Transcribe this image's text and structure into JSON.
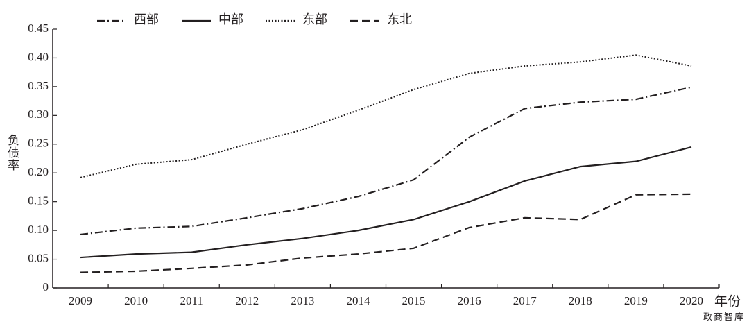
{
  "chart_data": {
    "type": "line",
    "y_label": "负债率",
    "x_label": "年份",
    "watermark": "政商智库",
    "categories": [
      "2009",
      "2010",
      "2011",
      "2012",
      "2013",
      "2014",
      "2015",
      "2016",
      "2017",
      "2018",
      "2019",
      "2020"
    ],
    "series": [
      {
        "name": "西部",
        "color": "#231f20",
        "dash": "dashdot",
        "values": [
          0.093,
          0.104,
          0.107,
          0.122,
          0.138,
          0.159,
          0.188,
          0.262,
          0.312,
          0.323,
          0.328,
          0.349
        ]
      },
      {
        "name": "中部",
        "color": "#231f20",
        "dash": "solid",
        "values": [
          0.053,
          0.059,
          0.062,
          0.075,
          0.086,
          0.1,
          0.119,
          0.15,
          0.186,
          0.211,
          0.22,
          0.245
        ]
      },
      {
        "name": "东部",
        "color": "#231f20",
        "dash": "dotted",
        "values": [
          0.192,
          0.215,
          0.223,
          0.25,
          0.275,
          0.309,
          0.345,
          0.373,
          0.386,
          0.393,
          0.405,
          0.386
        ]
      },
      {
        "name": "东北",
        "color": "#231f20",
        "dash": "dashed",
        "values": [
          0.027,
          0.029,
          0.034,
          0.04,
          0.052,
          0.059,
          0.069,
          0.105,
          0.122,
          0.119,
          0.162,
          0.163
        ]
      }
    ],
    "ylim": [
      0,
      0.45
    ],
    "yticks": [
      0,
      0.05,
      {
        "value": 0.1,
        "label": "0.10"
      },
      0.15,
      {
        "value": 0.2,
        "label": "0.20"
      },
      0.25,
      {
        "value": 0.3,
        "label": "0.30"
      },
      0.35,
      {
        "value": 0.4,
        "label": "0.40"
      },
      0.45
    ],
    "grid": false,
    "legend": "top"
  }
}
